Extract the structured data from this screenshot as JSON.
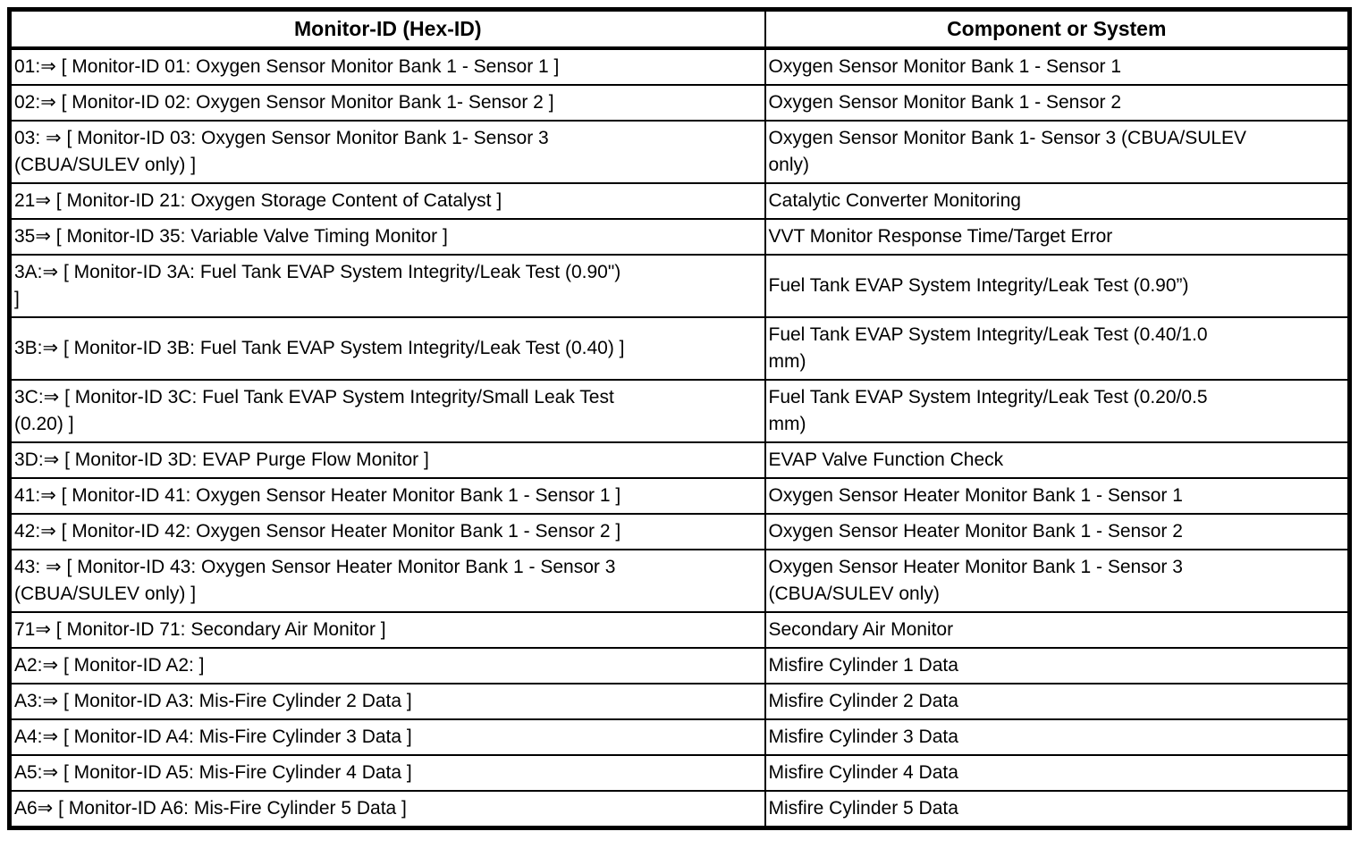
{
  "colors": {
    "background": "#ffffff",
    "border": "#000000",
    "text": "#000000"
  },
  "table": {
    "columns": [
      "Monitor-ID (Hex-ID)",
      "Component or System"
    ],
    "rows": [
      {
        "monitor_id": "01:⇒ [ Monitor-ID 01: Oxygen Sensor Monitor Bank 1 - Sensor 1 ]",
        "component": "Oxygen Sensor Monitor Bank 1 - Sensor 1"
      },
      {
        "monitor_id": "02:⇒ [ Monitor-ID 02: Oxygen Sensor Monitor Bank 1- Sensor 2 ]",
        "component": "Oxygen Sensor Monitor Bank 1 - Sensor 2"
      },
      {
        "monitor_id": "03: ⇒ [ Monitor-ID 03: Oxygen Sensor Monitor Bank 1- Sensor 3\n(CBUA/SULEV only) ]",
        "component": "Oxygen Sensor Monitor Bank 1- Sensor 3 (CBUA/SULEV\nonly)"
      },
      {
        "monitor_id": "21⇒ [ Monitor-ID 21: Oxygen Storage Content of Catalyst ]",
        "component": "Catalytic Converter Monitoring"
      },
      {
        "monitor_id": "35⇒ [ Monitor-ID 35: Variable Valve Timing Monitor ]",
        "component": "VVT Monitor Response Time/Target Error"
      },
      {
        "monitor_id": "3A:⇒ [ Monitor-ID 3A: Fuel Tank EVAP System Integrity/Leak Test (0.90\")\n]",
        "component": "Fuel Tank EVAP System Integrity/Leak Test (0.90”)"
      },
      {
        "monitor_id": "3B:⇒ [ Monitor-ID 3B: Fuel Tank EVAP System Integrity/Leak Test (0.40) ]",
        "component": "Fuel Tank EVAP System Integrity/Leak Test (0.40/1.0\nmm)"
      },
      {
        "monitor_id": "3C:⇒ [ Monitor-ID 3C: Fuel Tank EVAP System Integrity/Small Leak Test\n(0.20) ]",
        "component": "Fuel Tank EVAP System Integrity/Leak Test (0.20/0.5\nmm)"
      },
      {
        "monitor_id": "3D:⇒ [ Monitor-ID 3D: EVAP Purge Flow Monitor ]",
        "component": "EVAP Valve Function Check"
      },
      {
        "monitor_id": "41:⇒ [ Monitor-ID 41: Oxygen Sensor Heater Monitor Bank 1 - Sensor 1 ]",
        "component": "Oxygen Sensor Heater Monitor Bank 1 - Sensor 1"
      },
      {
        "monitor_id": "42:⇒ [ Monitor-ID 42: Oxygen Sensor Heater Monitor Bank 1 - Sensor 2 ]",
        "component": "Oxygen Sensor Heater Monitor Bank 1 - Sensor 2"
      },
      {
        "monitor_id": "43: ⇒ [ Monitor-ID 43: Oxygen Sensor Heater Monitor Bank 1 - Sensor 3\n(CBUA/SULEV only) ]",
        "component": "Oxygen Sensor Heater Monitor Bank 1 - Sensor 3\n(CBUA/SULEV only)"
      },
      {
        "monitor_id": "71⇒ [ Monitor-ID 71: Secondary Air Monitor ]",
        "component": "Secondary Air Monitor"
      },
      {
        "monitor_id": "A2:⇒ [ Monitor-ID A2: ]",
        "component": "Misfire Cylinder 1 Data"
      },
      {
        "monitor_id": "A3:⇒ [ Monitor-ID A3: Mis-Fire Cylinder 2 Data ]",
        "component": "Misfire Cylinder 2 Data"
      },
      {
        "monitor_id": "A4:⇒ [ Monitor-ID A4: Mis-Fire Cylinder 3 Data ]",
        "component": "Misfire Cylinder 3 Data"
      },
      {
        "monitor_id": "A5:⇒ [ Monitor-ID A5: Mis-Fire Cylinder 4 Data ]",
        "component": "Misfire Cylinder 4 Data"
      },
      {
        "monitor_id": "A6⇒ [ Monitor-ID A6: Mis-Fire Cylinder 5 Data ]",
        "component": "Misfire Cylinder 5 Data"
      }
    ]
  }
}
